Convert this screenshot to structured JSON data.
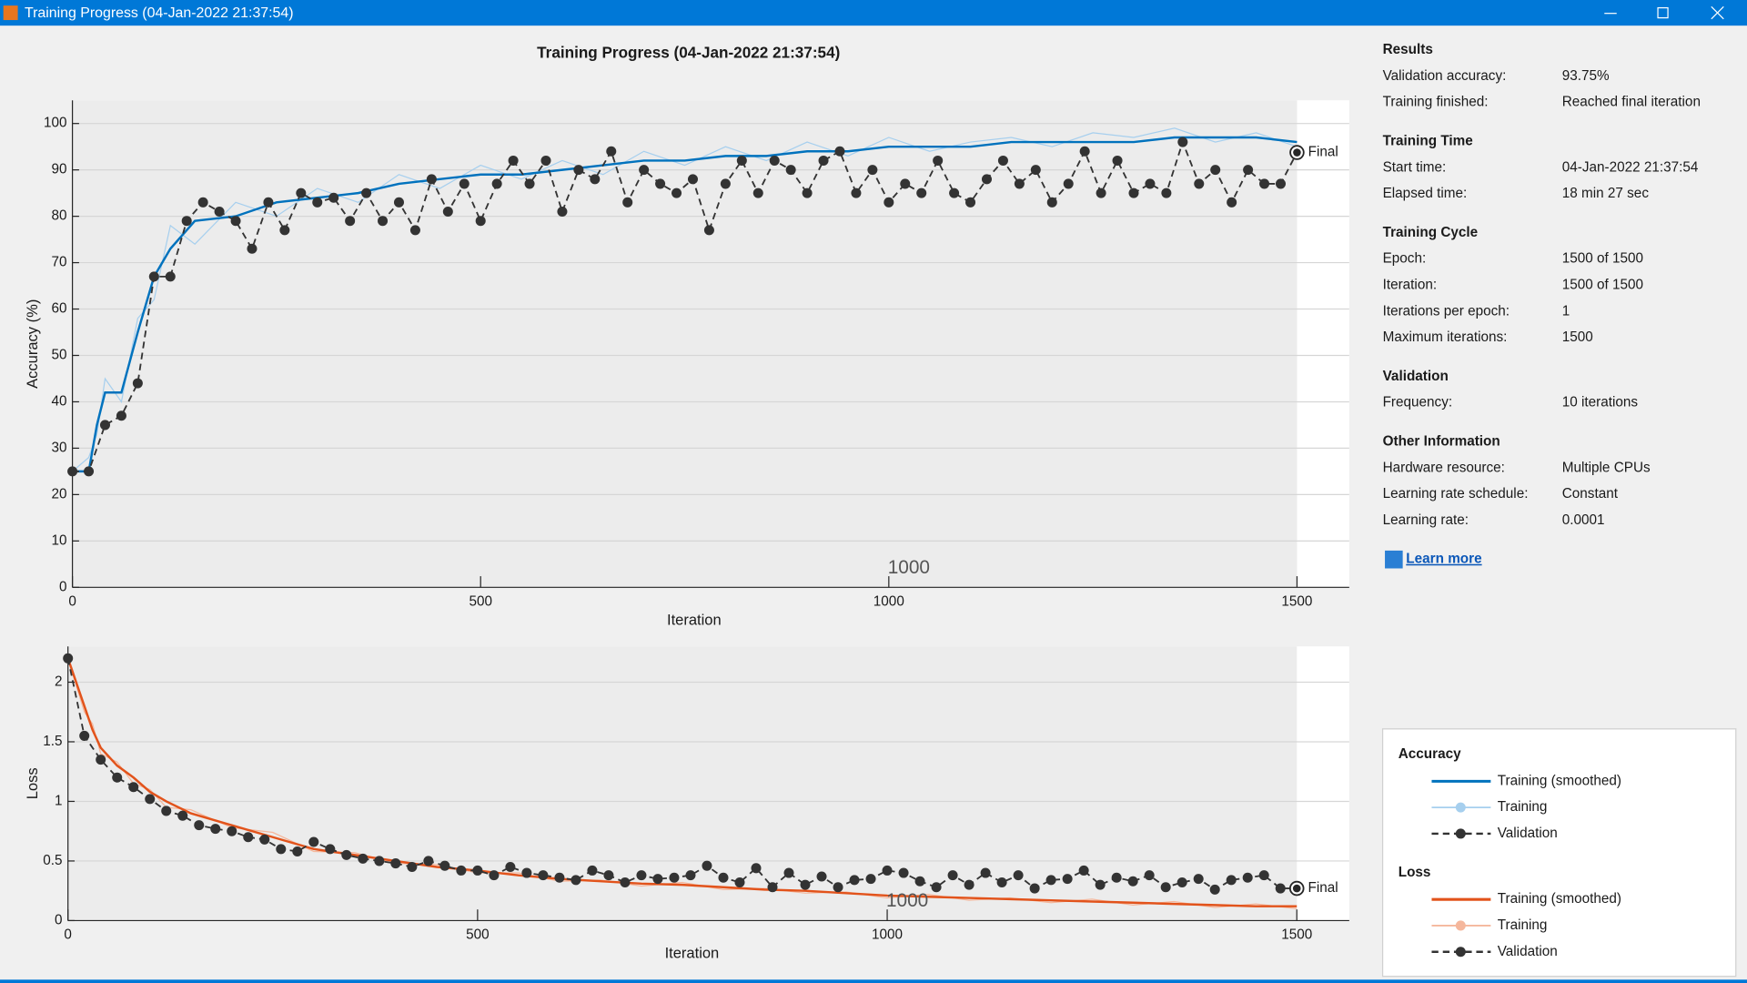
{
  "window": {
    "title": "Training Progress (04-Jan-2022 21:37:54)"
  },
  "chart_data": [
    {
      "type": "line",
      "title": "Training Progress (04-Jan-2022 21:37:54)",
      "xlabel": "Iteration",
      "ylabel": "Accuracy (%)",
      "xlim": [
        0,
        1564
      ],
      "ylim": [
        0,
        105
      ],
      "xticks": [
        0,
        500,
        1000,
        1500
      ],
      "yticks": [
        0,
        10,
        20,
        30,
        40,
        50,
        60,
        70,
        80,
        90,
        100
      ],
      "grid": true,
      "legend_title": "Accuracy",
      "series": [
        {
          "name": "Training",
          "color": "#a6cfee",
          "style": "thin",
          "x": [
            0,
            20,
            30,
            40,
            60,
            80,
            100,
            120,
            150,
            200,
            250,
            300,
            350,
            400,
            450,
            500,
            550,
            600,
            650,
            700,
            750,
            800,
            850,
            900,
            950,
            1000,
            1050,
            1100,
            1150,
            1200,
            1250,
            1300,
            1350,
            1400,
            1450,
            1500
          ],
          "values": [
            25,
            28,
            33,
            45,
            40,
            58,
            62,
            78,
            74,
            83,
            80,
            86,
            83,
            89,
            86,
            91,
            88,
            92,
            89,
            94,
            91,
            95,
            92,
            96,
            93,
            97,
            94,
            96,
            97,
            95,
            98,
            97,
            99,
            96,
            98,
            95
          ]
        },
        {
          "name": "Training (smoothed)",
          "color": "#0072bd",
          "style": "thick",
          "x": [
            0,
            20,
            30,
            40,
            60,
            80,
            100,
            120,
            150,
            200,
            250,
            300,
            350,
            400,
            450,
            500,
            550,
            600,
            650,
            700,
            750,
            800,
            850,
            900,
            950,
            1000,
            1050,
            1100,
            1150,
            1200,
            1250,
            1300,
            1350,
            1400,
            1450,
            1500
          ],
          "values": [
            25,
            25,
            35,
            42,
            42,
            55,
            67,
            73,
            79,
            80,
            83,
            84,
            85,
            87,
            88,
            89,
            89,
            90,
            91,
            92,
            92,
            93,
            93,
            94,
            94,
            95,
            95,
            95,
            96,
            96,
            96,
            96,
            97,
            97,
            97,
            96
          ]
        },
        {
          "name": "Validation",
          "color": "#333333",
          "style": "dashed-marker",
          "x": [
            0,
            20,
            40,
            60,
            80,
            100,
            120,
            140,
            160,
            180,
            200,
            220,
            240,
            260,
            280,
            300,
            320,
            340,
            360,
            380,
            400,
            420,
            440,
            460,
            480,
            500,
            520,
            540,
            560,
            580,
            600,
            620,
            640,
            660,
            680,
            700,
            720,
            740,
            760,
            780,
            800,
            820,
            840,
            860,
            880,
            900,
            920,
            940,
            960,
            980,
            1000,
            1020,
            1040,
            1060,
            1080,
            1100,
            1120,
            1140,
            1160,
            1180,
            1200,
            1220,
            1240,
            1260,
            1280,
            1300,
            1320,
            1340,
            1360,
            1380,
            1400,
            1420,
            1440,
            1460,
            1480,
            1500
          ],
          "values": [
            25,
            25,
            35,
            37,
            44,
            67,
            67,
            79,
            83,
            81,
            79,
            73,
            83,
            77,
            85,
            83,
            84,
            79,
            85,
            79,
            83,
            77,
            88,
            81,
            87,
            79,
            87,
            92,
            87,
            92,
            81,
            90,
            88,
            94,
            83,
            90,
            87,
            85,
            88,
            77,
            87,
            92,
            85,
            92,
            90,
            85,
            92,
            94,
            85,
            90,
            83,
            87,
            85,
            92,
            85,
            83,
            88,
            92,
            87,
            90,
            83,
            87,
            94,
            85,
            92,
            85,
            87,
            85,
            96,
            87,
            90,
            83,
            90,
            87,
            87,
            93.75
          ]
        }
      ],
      "annotations": [
        {
          "text": "1000",
          "x": 1000
        },
        {
          "text": "Final",
          "x": 1500,
          "y": 93.75
        }
      ]
    },
    {
      "type": "line",
      "xlabel": "Iteration",
      "ylabel": "Loss",
      "xlim": [
        0,
        1564
      ],
      "ylim": [
        0,
        2.3
      ],
      "xticks": [
        0,
        500,
        1000,
        1500
      ],
      "yticks": [
        0,
        0.5,
        1,
        1.5,
        2
      ],
      "grid": true,
      "legend_title": "Loss",
      "series": [
        {
          "name": "Training",
          "color": "#f5b79c",
          "style": "thin",
          "x": [
            0,
            20,
            30,
            40,
            60,
            80,
            100,
            120,
            150,
            200,
            250,
            300,
            350,
            400,
            450,
            500,
            550,
            600,
            650,
            700,
            750,
            800,
            850,
            900,
            950,
            1000,
            1050,
            1100,
            1150,
            1200,
            1250,
            1300,
            1350,
            1400,
            1450,
            1500
          ],
          "values": [
            2.2,
            1.75,
            1.65,
            1.4,
            1.33,
            1.15,
            1.1,
            0.95,
            0.93,
            0.78,
            0.74,
            0.58,
            0.57,
            0.48,
            0.47,
            0.4,
            0.4,
            0.33,
            0.34,
            0.29,
            0.32,
            0.26,
            0.27,
            0.23,
            0.24,
            0.19,
            0.22,
            0.17,
            0.19,
            0.15,
            0.18,
            0.13,
            0.16,
            0.11,
            0.14,
            0.1
          ]
        },
        {
          "name": "Training (smoothed)",
          "color": "#e2531b",
          "style": "thick",
          "x": [
            0,
            20,
            30,
            40,
            60,
            80,
            100,
            120,
            150,
            200,
            250,
            300,
            350,
            400,
            450,
            500,
            550,
            600,
            650,
            700,
            750,
            800,
            850,
            900,
            950,
            1000,
            1050,
            1100,
            1150,
            1200,
            1250,
            1300,
            1350,
            1400,
            1450,
            1500
          ],
          "values": [
            2.2,
            1.8,
            1.6,
            1.45,
            1.3,
            1.2,
            1.08,
            1.0,
            0.9,
            0.8,
            0.7,
            0.6,
            0.55,
            0.5,
            0.45,
            0.42,
            0.38,
            0.35,
            0.33,
            0.31,
            0.3,
            0.28,
            0.26,
            0.25,
            0.23,
            0.21,
            0.2,
            0.19,
            0.18,
            0.17,
            0.16,
            0.15,
            0.14,
            0.13,
            0.12,
            0.12
          ]
        },
        {
          "name": "Validation",
          "color": "#333333",
          "style": "dashed-marker",
          "x": [
            0,
            20,
            40,
            60,
            80,
            100,
            120,
            140,
            160,
            180,
            200,
            220,
            240,
            260,
            280,
            300,
            320,
            340,
            360,
            380,
            400,
            420,
            440,
            460,
            480,
            500,
            520,
            540,
            560,
            580,
            600,
            620,
            640,
            660,
            680,
            700,
            720,
            740,
            760,
            780,
            800,
            820,
            840,
            860,
            880,
            900,
            920,
            940,
            960,
            980,
            1000,
            1020,
            1040,
            1060,
            1080,
            1100,
            1120,
            1140,
            1160,
            1180,
            1200,
            1220,
            1240,
            1260,
            1280,
            1300,
            1320,
            1340,
            1360,
            1380,
            1400,
            1420,
            1440,
            1460,
            1480,
            1500
          ],
          "values": [
            2.2,
            1.55,
            1.35,
            1.2,
            1.12,
            1.02,
            0.92,
            0.88,
            0.8,
            0.77,
            0.75,
            0.7,
            0.68,
            0.6,
            0.58,
            0.66,
            0.6,
            0.55,
            0.52,
            0.5,
            0.48,
            0.45,
            0.5,
            0.46,
            0.42,
            0.42,
            0.38,
            0.45,
            0.4,
            0.38,
            0.36,
            0.34,
            0.42,
            0.38,
            0.32,
            0.38,
            0.35,
            0.36,
            0.38,
            0.46,
            0.36,
            0.32,
            0.44,
            0.28,
            0.4,
            0.3,
            0.37,
            0.28,
            0.34,
            0.35,
            0.42,
            0.4,
            0.33,
            0.28,
            0.38,
            0.3,
            0.4,
            0.32,
            0.38,
            0.27,
            0.34,
            0.35,
            0.42,
            0.3,
            0.36,
            0.33,
            0.38,
            0.28,
            0.32,
            0.35,
            0.26,
            0.34,
            0.36,
            0.38,
            0.27,
            0.27
          ]
        }
      ],
      "annotations": [
        {
          "text": "1000",
          "x": 1000
        },
        {
          "text": "Final",
          "x": 1500,
          "y": 0.27
        }
      ]
    }
  ],
  "info": {
    "sections": [
      {
        "title": "Results",
        "rows": [
          {
            "label": "Validation accuracy:",
            "value": "93.75%"
          },
          {
            "label": "Training finished:",
            "value": "Reached final iteration"
          }
        ]
      },
      {
        "title": "Training Time",
        "rows": [
          {
            "label": "Start time:",
            "value": "04-Jan-2022 21:37:54"
          },
          {
            "label": "Elapsed time:",
            "value": "18 min 27 sec"
          }
        ]
      },
      {
        "title": "Training Cycle",
        "rows": [
          {
            "label": "Epoch:",
            "value": "1500 of 1500"
          },
          {
            "label": "Iteration:",
            "value": "1500 of 1500"
          },
          {
            "label": "Iterations per epoch:",
            "value": "1"
          },
          {
            "label": "Maximum iterations:",
            "value": "1500"
          }
        ]
      },
      {
        "title": "Validation",
        "rows": [
          {
            "label": "Frequency:",
            "value": "10 iterations"
          }
        ]
      },
      {
        "title": "Other Information",
        "rows": [
          {
            "label": "Hardware resource:",
            "value": "Multiple CPUs"
          },
          {
            "label": "Learning rate schedule:",
            "value": "Constant"
          },
          {
            "label": "Learning rate:",
            "value": "0.0001"
          }
        ]
      }
    ],
    "learn_more": "Learn more"
  }
}
